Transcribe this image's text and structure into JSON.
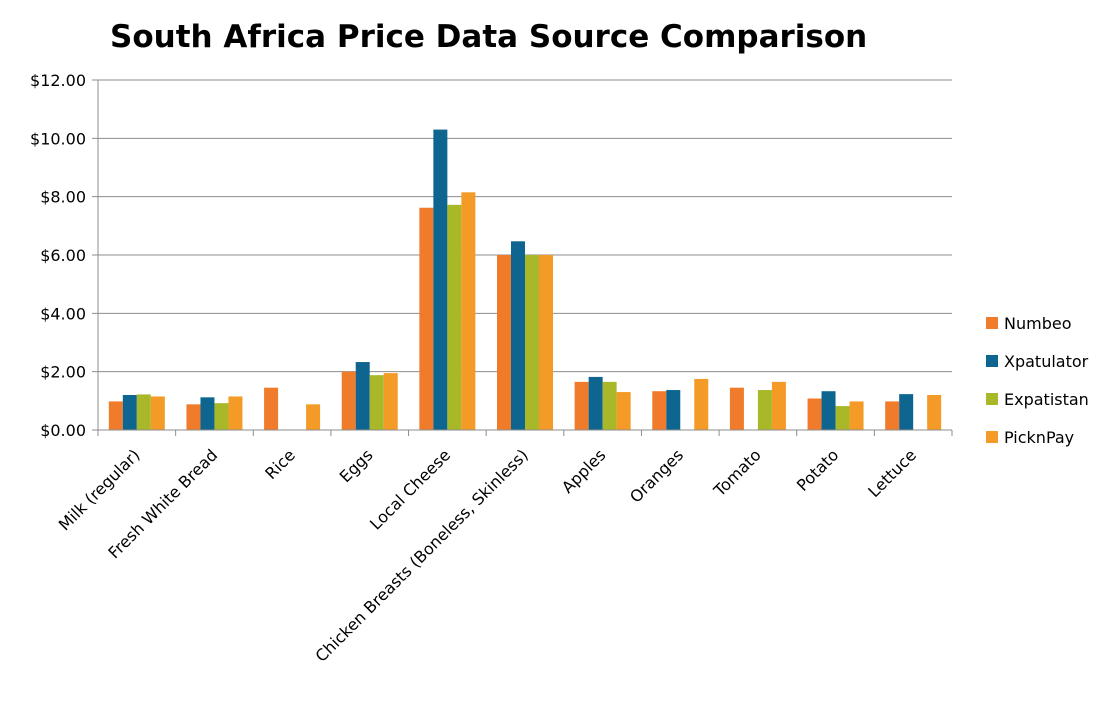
{
  "chart_data": {
    "type": "bar",
    "title": "South Africa Price Data Source Comparison",
    "xlabel": "",
    "ylabel": "",
    "ylim": [
      0,
      12
    ],
    "y_tick_values": [
      0,
      2,
      4,
      6,
      8,
      10,
      12
    ],
    "y_tick_labels": [
      "$0.00",
      "$2.00",
      "$4.00",
      "$6.00",
      "$8.00",
      "$10.00",
      "$12.00"
    ],
    "grid": true,
    "legend_position": "right",
    "categories": [
      "Milk (regular)",
      "Fresh White Bread",
      "Rice",
      "Eggs",
      "Local Cheese",
      "Chicken Breasts (Boneless, Skinless)",
      "Apples",
      "Oranges",
      "Tomato",
      "Potato",
      "Lettuce"
    ],
    "series": [
      {
        "name": "Numbeo",
        "color": "#f07b2a",
        "values": [
          0.98,
          0.88,
          1.45,
          2.0,
          7.62,
          6.0,
          1.65,
          1.33,
          1.45,
          1.08,
          0.98
        ]
      },
      {
        "name": "Xpatulator",
        "color": "#0e6590",
        "values": [
          1.2,
          1.12,
          null,
          2.33,
          10.3,
          6.47,
          1.82,
          1.37,
          null,
          1.33,
          1.23
        ]
      },
      {
        "name": "Expatistan",
        "color": "#a8b828",
        "values": [
          1.22,
          0.92,
          null,
          1.88,
          7.72,
          6.0,
          1.65,
          null,
          1.37,
          0.82,
          null
        ]
      },
      {
        "name": "PicknPay",
        "color": "#f49a26",
        "values": [
          1.15,
          1.15,
          0.88,
          1.95,
          8.15,
          6.0,
          1.3,
          1.75,
          1.65,
          0.98,
          1.2
        ]
      }
    ]
  }
}
